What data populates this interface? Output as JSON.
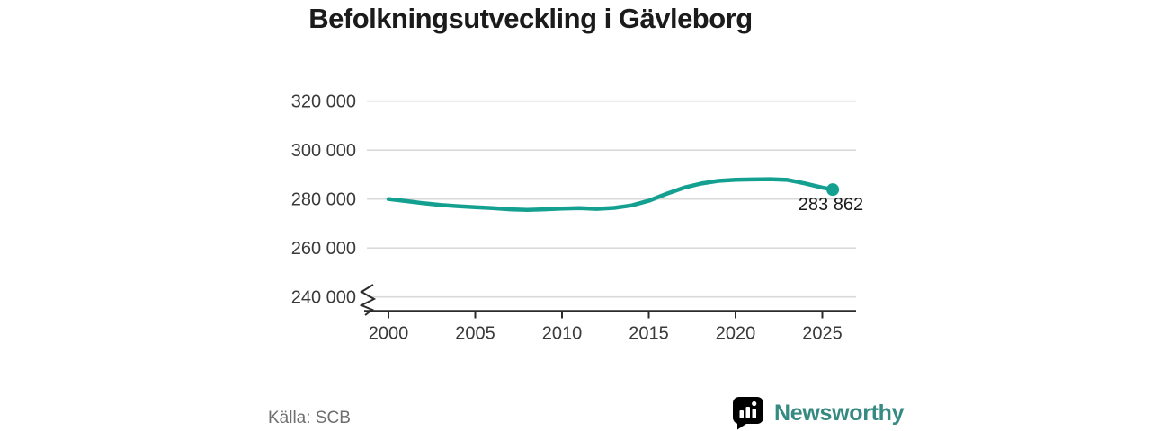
{
  "title": "Befolkningsutveckling i Gävleborg",
  "source_label": "Källa: SCB",
  "branding": {
    "name": "Newsworthy",
    "icon": "newsworthy-speech-bubble-chart-icon"
  },
  "colors": {
    "line": "#14a091",
    "grid": "#d9d9d9",
    "axis": "#2b2b2b",
    "tick_text": "#3a3a3a",
    "title_text": "#1b1b1b",
    "source_text": "#6f6f6f",
    "logo_badge": "#4a948c",
    "logo_text": "#358a81"
  },
  "chart_data": {
    "type": "line",
    "title": "Befolkningsutveckling i Gävleborg",
    "xlabel": "",
    "ylabel": "",
    "grid": "horizontal-only",
    "legend_position": "none",
    "axis_break_below_min": true,
    "xlim": [
      1998.7,
      2026.9
    ],
    "ylim": [
      240000,
      320000
    ],
    "x_ticks": [
      2000,
      2005,
      2010,
      2015,
      2020,
      2025
    ],
    "y_ticks": [
      {
        "value": 320000,
        "label": "320 000"
      },
      {
        "value": 300000,
        "label": "300 000"
      },
      {
        "value": 280000,
        "label": "280 000"
      },
      {
        "value": 260000,
        "label": "260 000"
      },
      {
        "value": 240000,
        "label": "240 000"
      }
    ],
    "series": [
      {
        "points": [
          [
            2000,
            280000
          ],
          [
            2001,
            279200
          ],
          [
            2002,
            278300
          ],
          [
            2003,
            277600
          ],
          [
            2004,
            277100
          ],
          [
            2005,
            276700
          ],
          [
            2006,
            276300
          ],
          [
            2007,
            275800
          ],
          [
            2008,
            275600
          ],
          [
            2009,
            275800
          ],
          [
            2010,
            276100
          ],
          [
            2011,
            276300
          ],
          [
            2012,
            276000
          ],
          [
            2013,
            276400
          ],
          [
            2014,
            277400
          ],
          [
            2015,
            279300
          ],
          [
            2016,
            282100
          ],
          [
            2017,
            284600
          ],
          [
            2018,
            286300
          ],
          [
            2019,
            287400
          ],
          [
            2020,
            287900
          ],
          [
            2021,
            288000
          ],
          [
            2022,
            288100
          ],
          [
            2023,
            287800
          ],
          [
            2024,
            286400
          ],
          [
            2025,
            284700
          ],
          [
            2025.6,
            283862
          ]
        ]
      }
    ],
    "end_point": {
      "x": 2025.6,
      "value": 283862,
      "label": "283 862"
    }
  }
}
